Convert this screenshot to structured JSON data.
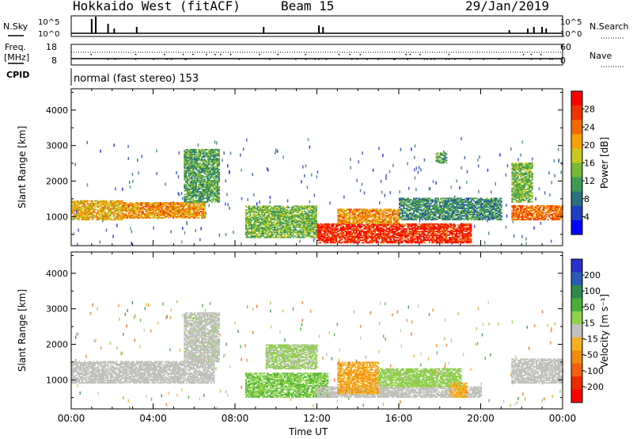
{
  "header": {
    "title": "Hokkaido West (fitACF)",
    "beam": "Beam 15",
    "date": "29/Jan/2019"
  },
  "top_panels": {
    "nsky_label": "N.Sky",
    "nsky_ticks": [
      "10^5",
      "10^0"
    ],
    "nsearch_label": "N.Search",
    "nsearch_ticks": [
      "10^5",
      "10^0"
    ],
    "freq_label": "Freq.",
    "freq_unit": "[MHz]",
    "freq_ticks": [
      "18",
      "8"
    ],
    "nave_label": "Nave",
    "nave_ticks": [
      "60",
      "0"
    ],
    "cpid_label": "CPID",
    "cpid_text": "normal (fast stereo) 153"
  },
  "x_axis": {
    "label": "Time UT",
    "ticks": [
      "00:00",
      "04:00",
      "08:00",
      "12:00",
      "16:00",
      "20:00",
      "00:00"
    ]
  },
  "power_colorbar": {
    "label": "Power [dB]",
    "ticks": [
      "28",
      "24",
      "20",
      "16",
      "12",
      "8",
      "4"
    ],
    "colors": [
      "#0000ff",
      "#1f3fc0",
      "#2d7080",
      "#3c9a55",
      "#77b838",
      "#c8c81e",
      "#f5a000",
      "#f26a00",
      "#ee3300",
      "#ff0000"
    ]
  },
  "velocity_colorbar": {
    "label": "Velocity [m s⁻¹]",
    "ticks": [
      "200",
      "100",
      "50",
      "15",
      "-15",
      "-50",
      "-100",
      "-200"
    ],
    "colors": [
      "#2a30c8",
      "#2a5ab8",
      "#2e8a4a",
      "#48b038",
      "#8ed04a",
      "#c0c0bc",
      "#f4b020",
      "#f08a10",
      "#f06010",
      "#ee2a00",
      "#ff0000"
    ]
  },
  "chart_data": [
    {
      "type": "heatmap",
      "title": "",
      "xlabel": "Time UT",
      "ylabel": "Slant Range [km]",
      "xlim": [
        0,
        24
      ],
      "ylim": [
        180,
        4600
      ],
      "y_ticks": [
        1000,
        2000,
        3000,
        4000
      ],
      "colorbar": "Power [dB]",
      "clim": [
        0,
        32
      ],
      "regions": [
        {
          "t": [
            0.0,
            2.5
          ],
          "r": [
            900,
            1450
          ],
          "value": 20
        },
        {
          "t": [
            2.5,
            6.5
          ],
          "r": [
            950,
            1400
          ],
          "value": 22
        },
        {
          "t": [
            5.5,
            7.2
          ],
          "r": [
            1400,
            2900
          ],
          "value": 12
        },
        {
          "t": [
            8.5,
            12.0
          ],
          "r": [
            400,
            1300
          ],
          "value": 14
        },
        {
          "t": [
            12.0,
            19.5
          ],
          "r": [
            250,
            800
          ],
          "value": 28
        },
        {
          "t": [
            13.0,
            16.0
          ],
          "r": [
            800,
            1200
          ],
          "value": 22
        },
        {
          "t": [
            16.0,
            21.0
          ],
          "r": [
            900,
            1500
          ],
          "value": 10
        },
        {
          "t": [
            17.8,
            18.3
          ],
          "r": [
            2500,
            2800
          ],
          "value": 12
        },
        {
          "t": [
            21.5,
            24.0
          ],
          "r": [
            900,
            1300
          ],
          "value": 24
        },
        {
          "t": [
            21.5,
            22.5
          ],
          "r": [
            1400,
            2500
          ],
          "value": 14
        }
      ]
    },
    {
      "type": "heatmap",
      "title": "",
      "xlabel": "Time UT",
      "ylabel": "Slant Range [km]",
      "xlim": [
        0,
        24
      ],
      "ylim": [
        180,
        4600
      ],
      "y_ticks": [
        1000,
        2000,
        3000,
        4000
      ],
      "colorbar": "Velocity [m s⁻¹]",
      "clim": [
        -250,
        250
      ],
      "regions": [
        {
          "t": [
            0.0,
            7.0
          ],
          "r": [
            900,
            1500
          ],
          "value": 0
        },
        {
          "t": [
            5.5,
            7.2
          ],
          "r": [
            1500,
            2900
          ],
          "value": 5
        },
        {
          "t": [
            8.5,
            12.5
          ],
          "r": [
            500,
            1200
          ],
          "value": 60
        },
        {
          "t": [
            9.5,
            12.0
          ],
          "r": [
            1300,
            2000
          ],
          "value": 30
        },
        {
          "t": [
            12.0,
            20.0
          ],
          "r": [
            500,
            800
          ],
          "value": 0
        },
        {
          "t": [
            13.0,
            15.0
          ],
          "r": [
            600,
            1500
          ],
          "value": -60
        },
        {
          "t": [
            15.0,
            19.0
          ],
          "r": [
            800,
            1300
          ],
          "value": 40
        },
        {
          "t": [
            18.5,
            19.3
          ],
          "r": [
            500,
            900
          ],
          "value": -50
        },
        {
          "t": [
            21.5,
            24.0
          ],
          "r": [
            900,
            1600
          ],
          "value": 0
        }
      ]
    }
  ]
}
